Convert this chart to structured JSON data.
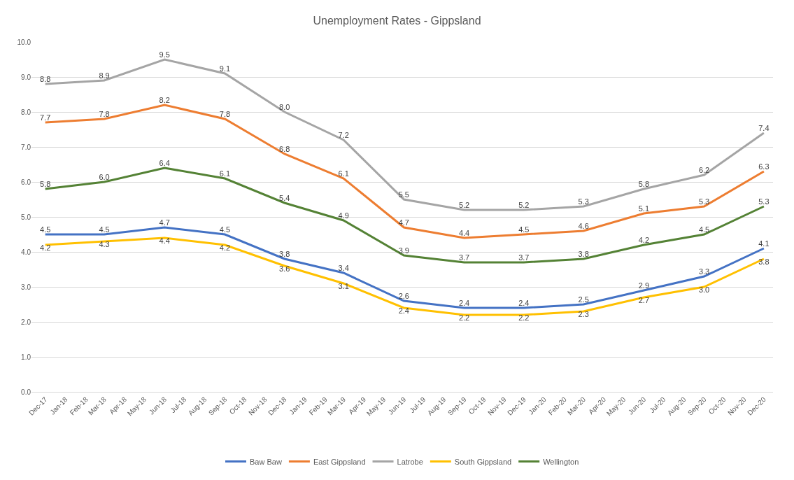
{
  "chart_data": {
    "type": "line",
    "title": "Unemployment Rates - Gippsland",
    "x": [
      "2017-12",
      "2018-03",
      "2018-06",
      "2018-09",
      "2018-12",
      "2019-03",
      "2019-06",
      "2019-09",
      "2019-12",
      "2020-03",
      "2020-06",
      "2020-09",
      "2020-12"
    ],
    "series": [
      {
        "name": "Baw Baw",
        "color": "#4472c4",
        "values": [
          4.5,
          4.5,
          4.7,
          4.5,
          3.8,
          3.4,
          2.6,
          2.4,
          2.4,
          2.5,
          2.9,
          3.3,
          4.1
        ],
        "value_labels": [
          "4.5",
          "4.5",
          "4.7",
          "4.5",
          "3.8",
          "3.4",
          "2.6",
          "2.4",
          "2.4",
          "2.5",
          "2.9",
          "3.3",
          "4.1"
        ]
      },
      {
        "name": "East Gippsland",
        "color": "#ed7d31",
        "values": [
          7.7,
          7.8,
          8.2,
          7.8,
          6.8,
          6.1,
          4.7,
          4.4,
          4.5,
          4.6,
          5.1,
          5.3,
          6.3
        ],
        "value_labels": [
          "7.7",
          "7.8",
          "8.2",
          "7.8",
          "6.8",
          "6.1",
          "4.7",
          "4.4",
          "4.5",
          "4.6",
          "5.1",
          "5.3",
          "6.3"
        ]
      },
      {
        "name": "Latrobe",
        "color": "#a5a5a5",
        "values": [
          8.8,
          8.9,
          9.5,
          9.1,
          8.0,
          7.2,
          5.5,
          5.2,
          5.2,
          5.3,
          5.8,
          6.2,
          7.4
        ],
        "value_labels": [
          "8.8",
          "8.9",
          "9.5",
          "9.1",
          "8.0",
          "7.2",
          "5.5",
          "5.2",
          "5.2",
          "5.3",
          "5.8",
          "6.2",
          "7.4"
        ]
      },
      {
        "name": "South Gippsland",
        "color": "#ffc000",
        "values": [
          4.2,
          4.3,
          4.4,
          4.2,
          3.6,
          3.1,
          2.4,
          2.2,
          2.2,
          2.3,
          2.7,
          3.0,
          3.8
        ],
        "value_labels": [
          "4.2",
          "4.3",
          "4.4",
          "4.2",
          "3.6",
          "3.1",
          "2.4",
          "2.2",
          "2.2",
          "2.3",
          "2.7",
          "3.0",
          "3.8"
        ]
      },
      {
        "name": "Wellington",
        "color": "#548235",
        "values": [
          5.8,
          6.0,
          6.4,
          6.1,
          5.4,
          4.9,
          3.9,
          3.7,
          3.7,
          3.8,
          4.2,
          4.5,
          5.3
        ],
        "value_labels": [
          "5.8",
          "6.0",
          "6.4",
          "6.1",
          "5.4",
          "4.9",
          "3.9",
          "3.7",
          "3.7",
          "3.8",
          "4.2",
          "4.5",
          "5.3"
        ]
      }
    ],
    "xlim": [
      "2017-11-10",
      "2020-12-15"
    ],
    "xticks": [
      {
        "value": "2017-12",
        "label": "Dec-17"
      },
      {
        "value": "2018-01",
        "label": "Jan-18"
      },
      {
        "value": "2018-02",
        "label": "Feb-18"
      },
      {
        "value": "2018-03",
        "label": "Mar-18"
      },
      {
        "value": "2018-04",
        "label": "Apr-18"
      },
      {
        "value": "2018-05",
        "label": "May-18"
      },
      {
        "value": "2018-06",
        "label": "Jun-18"
      },
      {
        "value": "2018-07",
        "label": "Jul-18"
      },
      {
        "value": "2018-08",
        "label": "Aug-18"
      },
      {
        "value": "2018-09",
        "label": "Sep-18"
      },
      {
        "value": "2018-10",
        "label": "Oct-18"
      },
      {
        "value": "2018-11",
        "label": "Nov-18"
      },
      {
        "value": "2018-12",
        "label": "Dec-18"
      },
      {
        "value": "2019-01",
        "label": "Jan-19"
      },
      {
        "value": "2019-02",
        "label": "Feb-19"
      },
      {
        "value": "2019-03",
        "label": "Mar-19"
      },
      {
        "value": "2019-04",
        "label": "Apr-19"
      },
      {
        "value": "2019-05",
        "label": "May-19"
      },
      {
        "value": "2019-06",
        "label": "Jun-19"
      },
      {
        "value": "2019-07",
        "label": "Jul-19"
      },
      {
        "value": "2019-08",
        "label": "Aug-19"
      },
      {
        "value": "2019-09",
        "label": "Sep-19"
      },
      {
        "value": "2019-10",
        "label": "Oct-19"
      },
      {
        "value": "2019-11",
        "label": "Nov-19"
      },
      {
        "value": "2019-12",
        "label": "Dec-19"
      },
      {
        "value": "2020-01",
        "label": "Jan-20"
      },
      {
        "value": "2020-02",
        "label": "Feb-20"
      },
      {
        "value": "2020-03",
        "label": "Mar-20"
      },
      {
        "value": "2020-04",
        "label": "Apr-20"
      },
      {
        "value": "2020-05",
        "label": "May-20"
      },
      {
        "value": "2020-06",
        "label": "Jun-20"
      },
      {
        "value": "2020-07",
        "label": "Jul-20"
      },
      {
        "value": "2020-08",
        "label": "Aug-20"
      },
      {
        "value": "2020-09",
        "label": "Sep-20"
      },
      {
        "value": "2020-10",
        "label": "Oct-20"
      },
      {
        "value": "2020-11",
        "label": "Nov-20"
      },
      {
        "value": "2020-12",
        "label": "Dec-20"
      }
    ],
    "ylim": [
      0,
      10
    ],
    "yticks": [
      {
        "value": 0,
        "label": "0.0"
      },
      {
        "value": 1,
        "label": "1.0"
      },
      {
        "value": 2,
        "label": "2.0"
      },
      {
        "value": 3,
        "label": "3.0"
      },
      {
        "value": 4,
        "label": "4.0"
      },
      {
        "value": 5,
        "label": "5.0"
      },
      {
        "value": 6,
        "label": "6.0"
      },
      {
        "value": 7,
        "label": "7.0"
      },
      {
        "value": 8,
        "label": "8.0"
      },
      {
        "value": 9,
        "label": "9.0"
      },
      {
        "value": 10,
        "label": "10.0"
      }
    ],
    "grid": "y",
    "legend": "bottom",
    "marker": "none",
    "line_style": "solid"
  }
}
